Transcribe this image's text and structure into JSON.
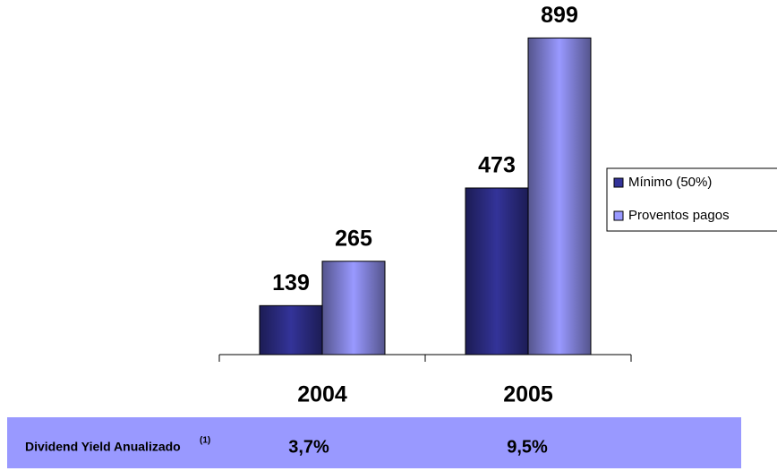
{
  "chart_data": {
    "type": "bar",
    "categories": [
      "2004",
      "2005"
    ],
    "series": [
      {
        "name": "Mínimo (50%)",
        "color": "#333399",
        "values": [
          139,
          473
        ]
      },
      {
        "name": "Proventos pagos",
        "color": "#9999ff",
        "values": [
          265,
          899
        ]
      }
    ],
    "ylim": [
      0,
      900
    ],
    "legend": "right"
  },
  "table": {
    "label": "Dividend Yield Anualizado",
    "note": "(1)",
    "values": [
      "3,7%",
      "9,5%"
    ]
  }
}
